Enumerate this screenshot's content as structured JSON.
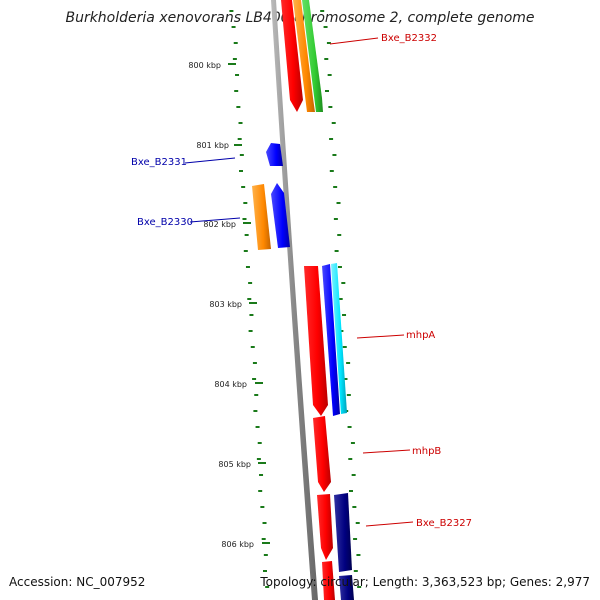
{
  "header": {
    "title": "Burkholderia xenovorans LB400 chromosome 2, complete genome"
  },
  "footer": {
    "accession": "Accession: NC_007952",
    "topology": "Topology: circular; Length: 3,363,523 bp; Genes: 2,977"
  },
  "map": {
    "ticks": [
      {
        "label": "800 kbp"
      },
      {
        "label": "801 kbp"
      },
      {
        "label": "802 kbp"
      },
      {
        "label": "803 kbp"
      },
      {
        "label": "804 kbp"
      },
      {
        "label": "805 kbp"
      },
      {
        "label": "806 kbp"
      }
    ],
    "gene_labels": [
      {
        "text": "Bxe_B2332",
        "color": "#cc0000"
      },
      {
        "text": "Bxe_B2331",
        "color": "#0000aa"
      },
      {
        "text": "Bxe_B2330",
        "color": "#0000aa"
      },
      {
        "text": "mhpA",
        "color": "#cc0000"
      },
      {
        "text": "mhpB",
        "color": "#cc0000"
      },
      {
        "text": "Bxe_B2327",
        "color": "#cc0000"
      }
    ],
    "colors": {
      "backbone": "#888888",
      "dots": "#1a7a1a",
      "red": "#ff0000",
      "orange": "#ff8800",
      "green": "#33cc33",
      "blue": "#0000ff",
      "cyan": "#00e5ff",
      "navy": "#000080"
    }
  }
}
